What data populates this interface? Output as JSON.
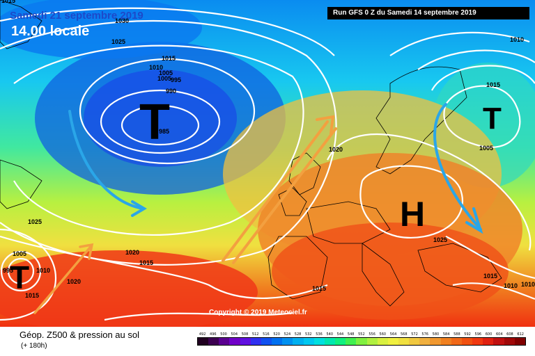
{
  "header": {
    "date": "Samedi 21 septembre 2019",
    "time": "14.00 locale",
    "run": "Run GFS 0 Z du Samedi 14 septembre 2019"
  },
  "copyright": "Copyright © 2019 Meteociel.fr",
  "legend": {
    "title": "Géop. Z500 & pression au sol",
    "subtitle": "(+ 180h)",
    "ticks": [
      "492",
      "496",
      "500",
      "504",
      "508",
      "512",
      "516",
      "520",
      "524",
      "528",
      "532",
      "536",
      "540",
      "544",
      "548",
      "552",
      "556",
      "560",
      "564",
      "568",
      "572",
      "576",
      "580",
      "584",
      "588",
      "592",
      "596",
      "600",
      "604",
      "608",
      "612"
    ],
    "colors": [
      "#200020",
      "#3c0050",
      "#5a0090",
      "#7000c8",
      "#6010e0",
      "#3030f0",
      "#1050f0",
      "#0070f0",
      "#0090f0",
      "#00b0f0",
      "#00c8f0",
      "#00e0e0",
      "#00e8b0",
      "#10f080",
      "#40f050",
      "#80f040",
      "#b0f040",
      "#d8f040",
      "#f0f040",
      "#f0e040",
      "#f0c840",
      "#f0b040",
      "#f09830",
      "#f08020",
      "#f06818",
      "#f05010",
      "#f03810",
      "#e02010",
      "#c01010",
      "#a00808",
      "#800000"
    ]
  },
  "pressure_labels": [
    "1030",
    "1025",
    "1015",
    "1010",
    "1005",
    "1005",
    "995",
    "990",
    "985",
    "1020",
    "1015",
    "1010",
    "1005",
    "1025",
    "1020",
    "1015",
    "1025",
    "1020",
    "1015",
    "1015",
    "1005",
    "1010",
    "1010",
    "1015",
    "995",
    "1010",
    "1015"
  ],
  "centers": {
    "low_1": "T",
    "low_2": "T",
    "low_3": "T",
    "high_1": "H"
  }
}
